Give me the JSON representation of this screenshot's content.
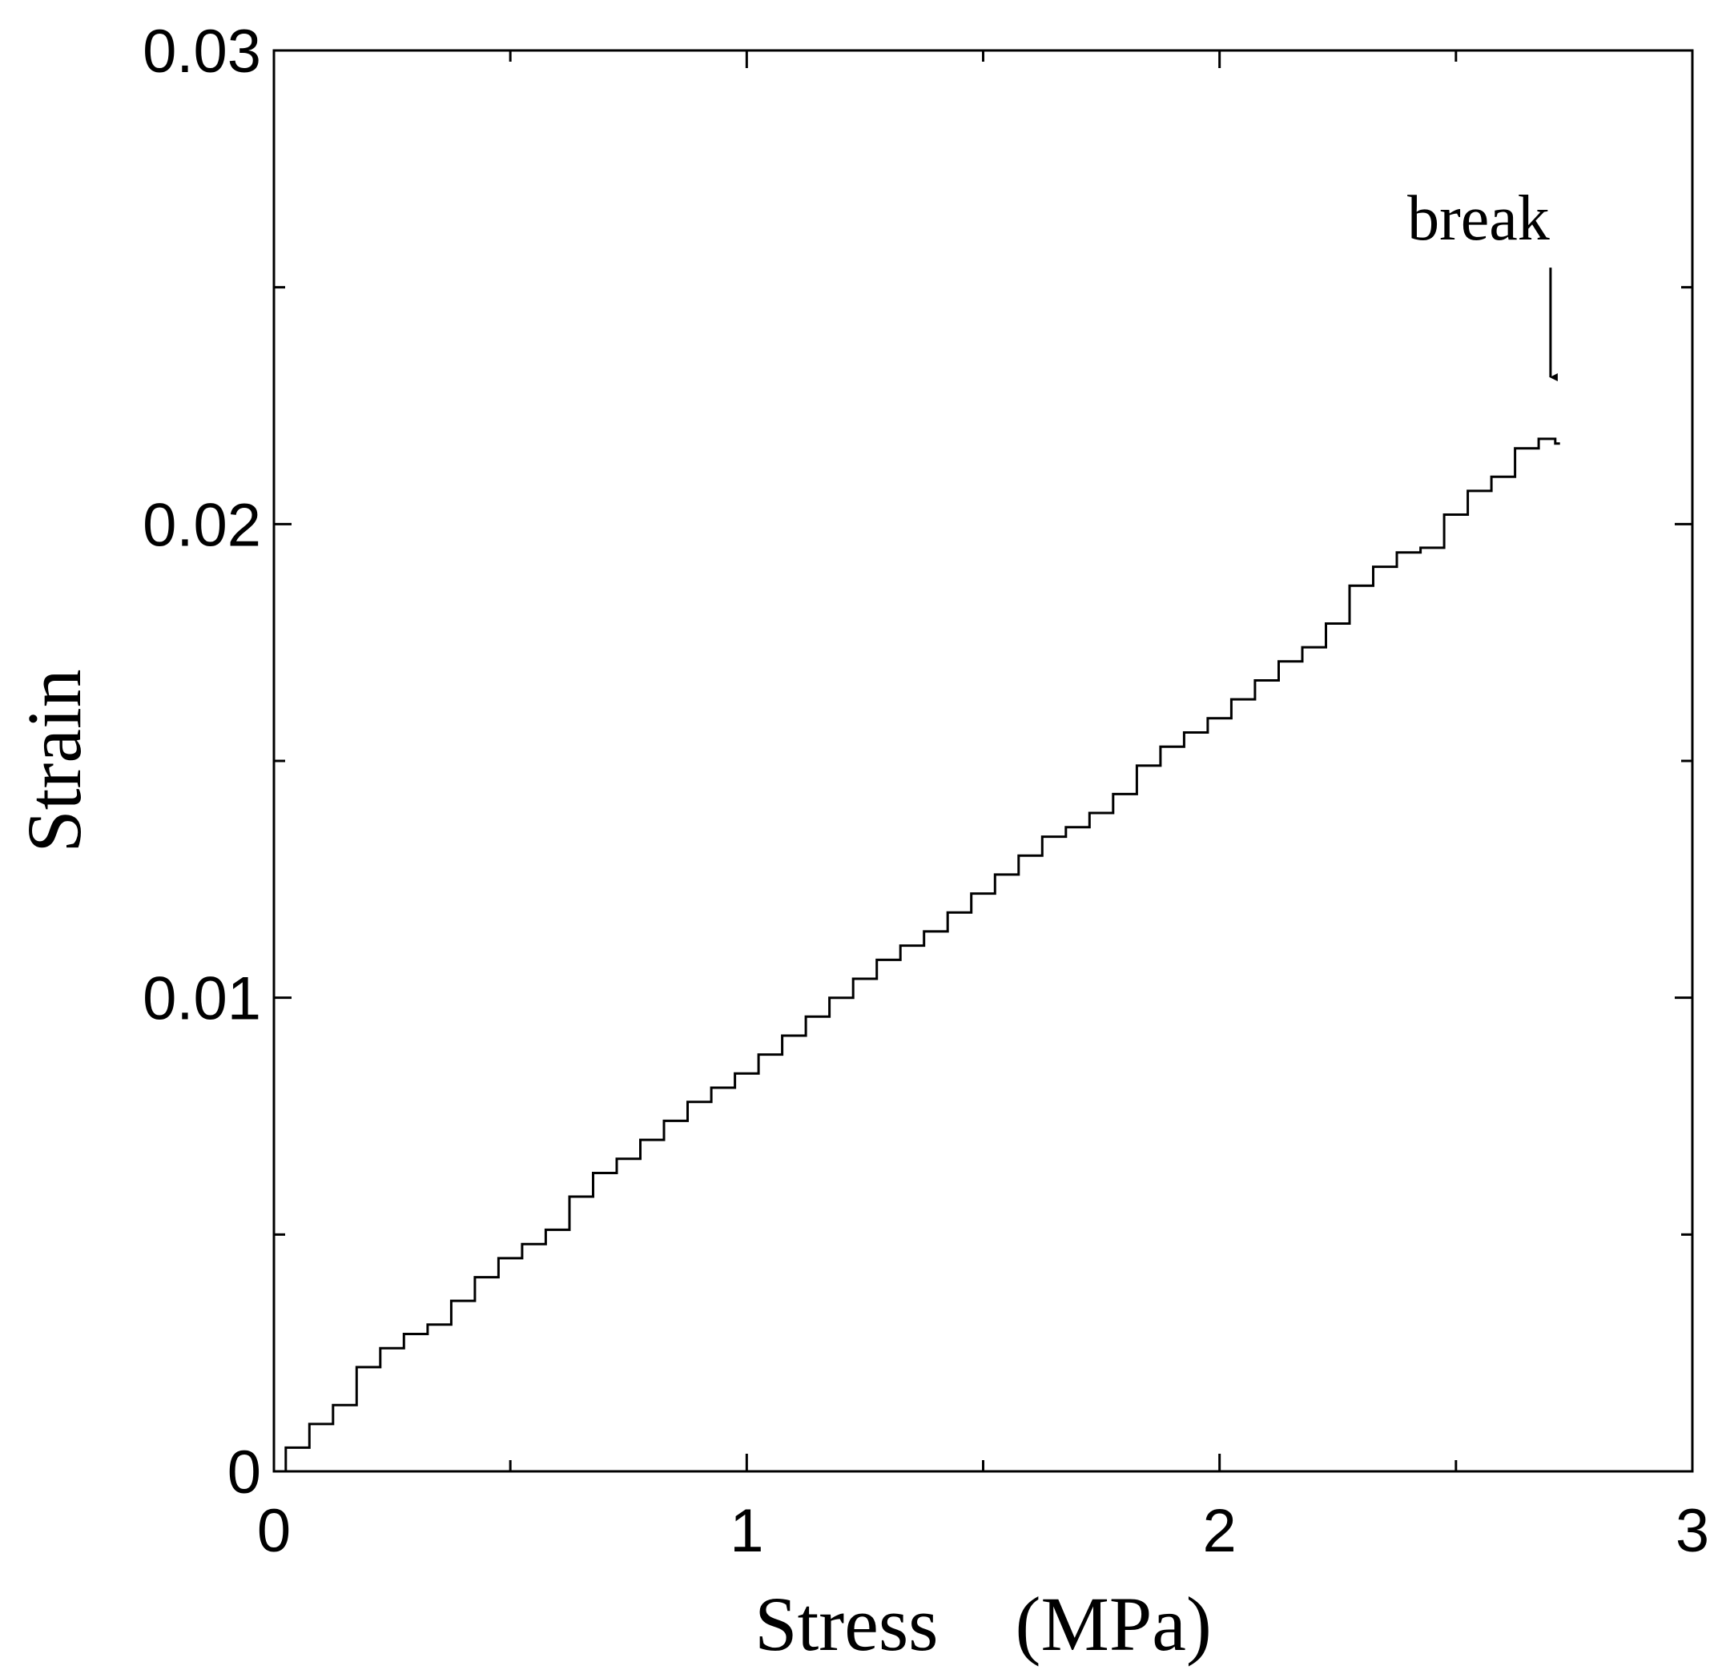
{
  "chart_data": {
    "type": "line",
    "title": "",
    "xlabel": "Stress　(MPa)",
    "ylabel": "Strain",
    "xlim": [
      0,
      3
    ],
    "ylim": [
      0,
      0.03
    ],
    "x_ticks": [
      0,
      1,
      2,
      3
    ],
    "x_tick_labels": [
      "0",
      "1",
      "2",
      "3"
    ],
    "y_ticks": [
      0,
      0.01,
      0.02,
      0.03
    ],
    "y_tick_labels": [
      "0",
      "0.01",
      "0.02",
      "0.03"
    ],
    "x_minor_ticks": [
      0.5,
      1.5,
      2.5
    ],
    "y_minor_ticks": [
      0.005,
      0.015,
      0.025
    ],
    "grid": false,
    "legend": "none",
    "line_color": "#000000",
    "step_line": true,
    "series": [
      {
        "x": [
          0.0,
          0.05,
          0.1,
          0.15,
          0.2,
          0.25,
          0.3,
          0.35,
          0.4,
          0.45,
          0.5,
          0.55,
          0.6,
          0.65,
          0.7,
          0.75,
          0.8,
          0.85,
          0.9,
          0.95,
          1.0,
          1.05,
          1.1,
          1.15,
          1.2,
          1.25,
          1.3,
          1.35,
          1.4,
          1.45,
          1.5,
          1.55,
          1.6,
          1.65,
          1.7,
          1.75,
          1.8,
          1.85,
          1.9,
          1.95,
          2.0,
          2.05,
          2.1,
          2.15,
          2.2,
          2.25,
          2.3,
          2.35,
          2.4,
          2.45,
          2.5,
          2.55,
          2.6,
          2.65,
          2.7,
          2.72
        ],
        "y": [
          0.0,
          0.0005,
          0.001,
          0.0014,
          0.0022,
          0.0026,
          0.0029,
          0.0031,
          0.0036,
          0.0041,
          0.0045,
          0.0048,
          0.0051,
          0.0058,
          0.0063,
          0.0066,
          0.007,
          0.0074,
          0.0078,
          0.0081,
          0.0084,
          0.0088,
          0.0092,
          0.0096,
          0.01,
          0.0104,
          0.0108,
          0.0111,
          0.0114,
          0.0118,
          0.0122,
          0.0126,
          0.013,
          0.0134,
          0.0136,
          0.0139,
          0.0143,
          0.0149,
          0.0153,
          0.0156,
          0.0159,
          0.0163,
          0.0167,
          0.0171,
          0.0174,
          0.0179,
          0.0187,
          0.0191,
          0.0194,
          0.0195,
          0.0202,
          0.0207,
          0.021,
          0.0216,
          0.0218,
          0.0217
        ]
      }
    ],
    "annotations": [
      {
        "text": "break",
        "x": 2.7,
        "y": 0.0255,
        "arrow_to": [
          2.7,
          0.0231
        ]
      }
    ]
  }
}
